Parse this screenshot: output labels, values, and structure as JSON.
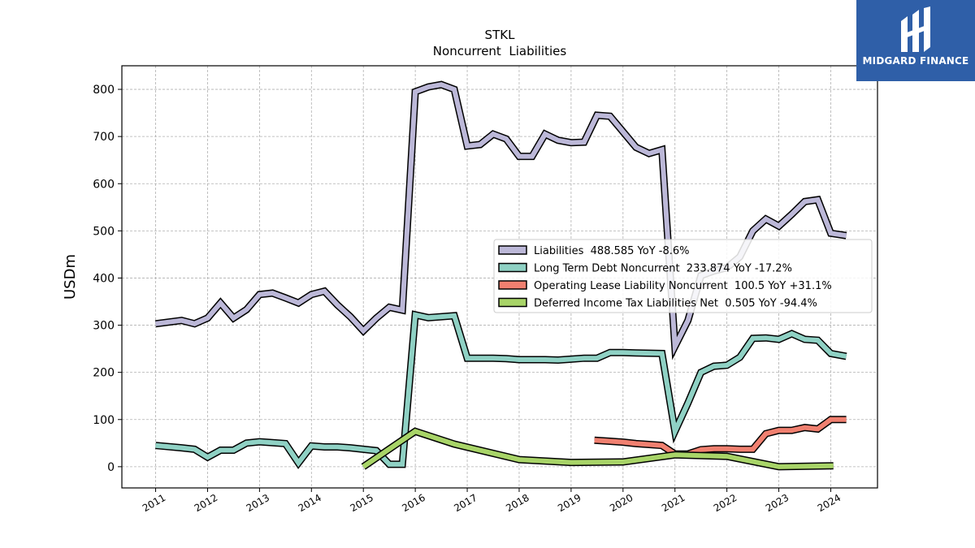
{
  "chart_data": {
    "type": "line",
    "title": "STKL",
    "subtitle": "Noncurrent  Liabilities",
    "ylabel": "USDm",
    "xlabel": "",
    "xlim": [
      2010.35,
      2024.9
    ],
    "ylim": [
      -45,
      850
    ],
    "yticks": [
      0,
      100,
      200,
      300,
      400,
      500,
      600,
      700,
      800
    ],
    "xticks": [
      2011,
      2012,
      2013,
      2014,
      2015,
      2016,
      2017,
      2018,
      2019,
      2020,
      2021,
      2022,
      2023,
      2024
    ],
    "grid": true,
    "legend_position": "center-right",
    "series": [
      {
        "name": "Liabilities  488.585 YoY -8.6%",
        "color": "#bcb8d8",
        "points": [
          [
            2011.0,
            303
          ],
          [
            2011.5,
            310
          ],
          [
            2011.75,
            303
          ],
          [
            2012.0,
            315
          ],
          [
            2012.25,
            347
          ],
          [
            2012.5,
            315
          ],
          [
            2012.75,
            333
          ],
          [
            2013.0,
            365
          ],
          [
            2013.25,
            368
          ],
          [
            2013.5,
            358
          ],
          [
            2013.75,
            347
          ],
          [
            2014.0,
            365
          ],
          [
            2014.25,
            372
          ],
          [
            2014.5,
            343
          ],
          [
            2014.75,
            318
          ],
          [
            2015.0,
            288
          ],
          [
            2015.25,
            315
          ],
          [
            2015.5,
            338
          ],
          [
            2015.75,
            332
          ],
          [
            2016.0,
            795
          ],
          [
            2016.25,
            805
          ],
          [
            2016.5,
            810
          ],
          [
            2016.75,
            800
          ],
          [
            2017.0,
            680
          ],
          [
            2017.25,
            683
          ],
          [
            2017.5,
            705
          ],
          [
            2017.75,
            695
          ],
          [
            2018.0,
            658
          ],
          [
            2018.25,
            658
          ],
          [
            2018.5,
            705
          ],
          [
            2018.75,
            692
          ],
          [
            2019.0,
            687
          ],
          [
            2019.25,
            688
          ],
          [
            2019.5,
            745
          ],
          [
            2019.75,
            743
          ],
          [
            2020.0,
            710
          ],
          [
            2020.25,
            677
          ],
          [
            2020.5,
            664
          ],
          [
            2020.75,
            672
          ],
          [
            2021.0,
            255
          ],
          [
            2021.25,
            310
          ],
          [
            2021.5,
            405
          ],
          [
            2021.75,
            415
          ],
          [
            2022.0,
            422
          ],
          [
            2022.25,
            445
          ],
          [
            2022.5,
            500
          ],
          [
            2022.75,
            525
          ],
          [
            2023.0,
            510
          ],
          [
            2023.25,
            535
          ],
          [
            2023.5,
            562
          ],
          [
            2023.75,
            566
          ],
          [
            2024.0,
            495
          ],
          [
            2024.3,
            490
          ]
        ]
      },
      {
        "name": "Long Term Debt Noncurrent  233.874 YoY -17.2%",
        "color": "#8fd1c4",
        "points": [
          [
            2011.0,
            45
          ],
          [
            2011.5,
            40
          ],
          [
            2011.75,
            37
          ],
          [
            2012.0,
            20
          ],
          [
            2012.25,
            35
          ],
          [
            2012.5,
            35
          ],
          [
            2012.75,
            50
          ],
          [
            2013.0,
            53
          ],
          [
            2013.25,
            51
          ],
          [
            2013.5,
            49
          ],
          [
            2013.75,
            8
          ],
          [
            2014.0,
            44
          ],
          [
            2014.25,
            42
          ],
          [
            2014.5,
            42
          ],
          [
            2014.75,
            40
          ],
          [
            2015.0,
            37
          ],
          [
            2015.25,
            34
          ],
          [
            2015.5,
            5
          ],
          [
            2015.75,
            5
          ],
          [
            2016.0,
            322
          ],
          [
            2016.25,
            316
          ],
          [
            2016.5,
            318
          ],
          [
            2016.75,
            320
          ],
          [
            2017.0,
            230
          ],
          [
            2017.25,
            230
          ],
          [
            2017.5,
            230
          ],
          [
            2017.75,
            229
          ],
          [
            2018.0,
            227
          ],
          [
            2018.5,
            227
          ],
          [
            2018.75,
            226
          ],
          [
            2019.0,
            228
          ],
          [
            2019.25,
            230
          ],
          [
            2019.5,
            230
          ],
          [
            2019.75,
            242
          ],
          [
            2020.0,
            242
          ],
          [
            2020.25,
            241
          ],
          [
            2020.75,
            240
          ],
          [
            2021.0,
            75
          ],
          [
            2021.25,
            135
          ],
          [
            2021.5,
            200
          ],
          [
            2021.75,
            213
          ],
          [
            2022.0,
            215
          ],
          [
            2022.25,
            232
          ],
          [
            2022.5,
            272
          ],
          [
            2022.75,
            273
          ],
          [
            2023.0,
            270
          ],
          [
            2023.25,
            282
          ],
          [
            2023.5,
            270
          ],
          [
            2023.75,
            268
          ],
          [
            2024.0,
            240
          ],
          [
            2024.3,
            234
          ]
        ]
      },
      {
        "name": "Operating Lease Liability Noncurrent  100.5 YoY +31.1%",
        "color": "#f08070",
        "points": [
          [
            2019.45,
            56
          ],
          [
            2019.75,
            54
          ],
          [
            2020.0,
            52
          ],
          [
            2020.25,
            49
          ],
          [
            2020.5,
            47
          ],
          [
            2020.75,
            45
          ],
          [
            2021.0,
            27
          ],
          [
            2021.25,
            27
          ],
          [
            2021.5,
            36
          ],
          [
            2021.75,
            38
          ],
          [
            2022.0,
            38
          ],
          [
            2022.25,
            37
          ],
          [
            2022.5,
            37
          ],
          [
            2022.75,
            70
          ],
          [
            2023.0,
            77
          ],
          [
            2023.25,
            77
          ],
          [
            2023.5,
            83
          ],
          [
            2023.75,
            80
          ],
          [
            2024.0,
            100
          ],
          [
            2024.3,
            100
          ]
        ]
      },
      {
        "name": "Deferred Income Tax Liabilities Net  0.505 YoY -94.4%",
        "color": "#a8d468",
        "points": [
          [
            2015.0,
            0
          ],
          [
            2016.0,
            75
          ],
          [
            2016.75,
            48
          ],
          [
            2018.0,
            15
          ],
          [
            2019.0,
            9
          ],
          [
            2020.0,
            10
          ],
          [
            2021.0,
            25
          ],
          [
            2022.0,
            22
          ],
          [
            2023.0,
            0
          ],
          [
            2024.05,
            2
          ]
        ]
      }
    ]
  },
  "logo": {
    "text": "MIDGARD FINANCE",
    "bg": "#2f5fa8",
    "icon": "midgard-logo-icon"
  }
}
